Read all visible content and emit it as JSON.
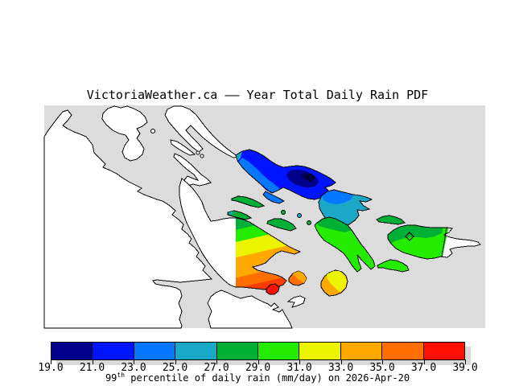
{
  "title": "VictoriaWeather.ca –– Year Total Daily Rain PDF",
  "palette": {
    "navy": "#00008C",
    "darknavy": "#000054",
    "blue": "#0014FF",
    "dodger": "#0578FF",
    "teal": "#1BA7C6",
    "green": "#00AF35",
    "lime": "#23EC00",
    "yellow": "#EDF400",
    "orange": "#FFA800",
    "deeporange": "#FF6E00",
    "orangered": "#FF3C00",
    "red": "#FF0F00",
    "water": "#DCDCDC",
    "land": "#FFFFFF",
    "coastline": "#000000",
    "shadow": "#D9D9D9"
  },
  "colorbar": {
    "segments": [
      "navy",
      "blue",
      "dodger",
      "teal",
      "green",
      "lime",
      "yellow",
      "orange",
      "deeporange",
      "red"
    ],
    "tick_labels": [
      "19.0",
      "21.0",
      "23.0",
      "25.0",
      "27.0",
      "29.0",
      "31.0",
      "33.0",
      "35.0",
      "37.0",
      "39.0"
    ],
    "caption": {
      "base": "99",
      "sup": "th",
      "rest": " percentile of daily rain (mm/day) on 2026-Apr-20"
    }
  },
  "chart_data": {
    "type": "heatmap",
    "subtype": "geographic filled-contour map (Gulf Islands / Saanich Peninsula region, rotated)",
    "title": "VictoriaWeather.ca –– Year Total Daily Rain PDF",
    "legend_title": "99th percentile of daily rain (mm/day) on 2026-Apr-20",
    "units": "mm/day",
    "scale_min": 19.0,
    "scale_max": 39.0,
    "scale_step": 2.0,
    "scale_ticks": [
      19.0,
      21.0,
      23.0,
      25.0,
      27.0,
      29.0,
      31.0,
      33.0,
      35.0,
      37.0,
      39.0
    ],
    "legend_position": "bottom",
    "water_color": "light gray",
    "no_data_land_color": "white",
    "regions": [
      {
        "area": "large north-central island (blue with navy core)",
        "approx_value_mm_day": "19-25, core 19-21"
      },
      {
        "area": "island northeast of it (dodger/teal)",
        "approx_value_mm_day": "23-27"
      },
      {
        "area": "small mid-channel sliver islands (dark green)",
        "approx_value_mm_day": "27-29"
      },
      {
        "area": "southeastern green islands (white east tip = outside data domain)",
        "approx_value_mm_day": "27-31"
      },
      {
        "area": "central peninsula, data clipped at vertical domain edge",
        "approx_value_mm_day": "27-39 gradient from green (N) to orange-red (S)"
      },
      {
        "area": "small southern islets (orange / yellow-orange / red)",
        "approx_value_mm_day": "31-39, red islet 37-39"
      }
    ]
  }
}
